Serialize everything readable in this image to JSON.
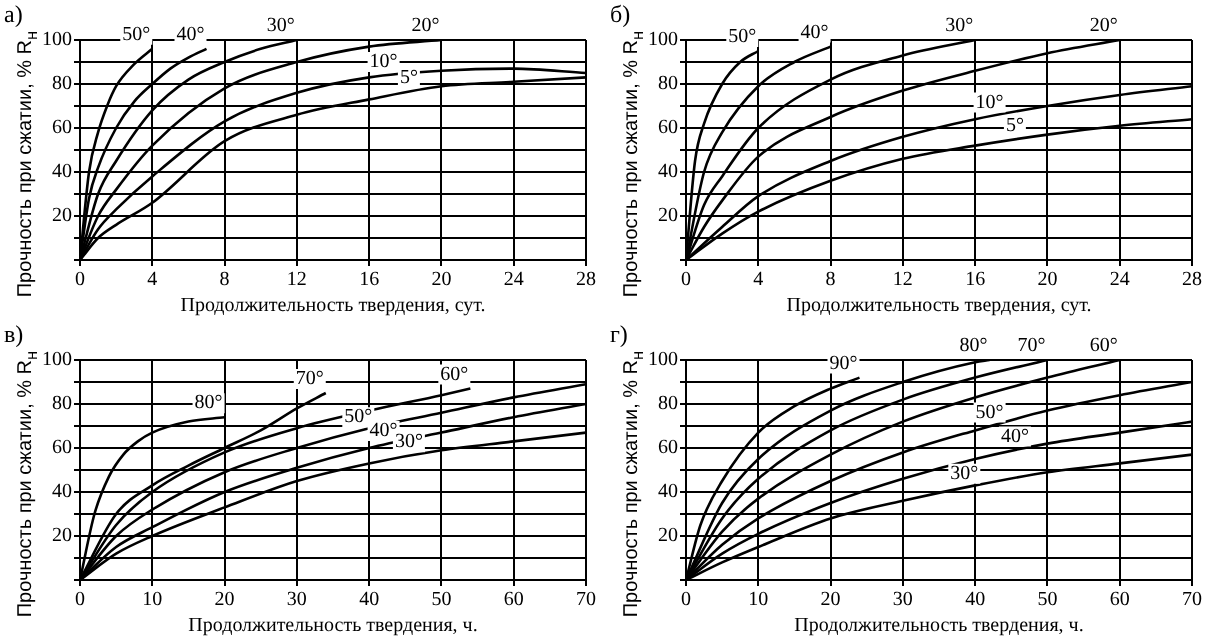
{
  "chart_data": [
    {
      "type": "line",
      "title": "а)",
      "xlabel": "Продолжительность твердения, сут.",
      "ylabel": "Прочность при сжатии, % R$_{н}$",
      "xlim": [
        0,
        28
      ],
      "ylim": [
        0,
        100
      ],
      "xticks": [
        0,
        4,
        8,
        12,
        16,
        20,
        24,
        28
      ],
      "yticks": [
        {
          "value": 0,
          "label": null
        },
        {
          "value": 10,
          "label": null
        },
        20,
        {
          "value": 30,
          "label": null
        },
        40,
        {
          "value": 50,
          "label": null
        },
        60,
        {
          "value": 70,
          "label": null
        },
        80,
        {
          "value": 90,
          "label": null
        },
        100
      ],
      "grid": true,
      "marker": "none",
      "line_style": "solid",
      "series": [
        {
          "name": "50°",
          "color": "#000000",
          "x": [
            0,
            0.5,
            1,
            1.5,
            2,
            3,
            4
          ],
          "values": [
            0,
            40,
            58,
            70,
            79,
            89,
            96
          ]
        },
        {
          "name": "40°",
          "color": "#000000",
          "x": [
            0,
            0.5,
            1,
            2,
            3,
            4,
            5,
            6,
            7
          ],
          "values": [
            0,
            28,
            42,
            60,
            72,
            80,
            87,
            92,
            96
          ]
        },
        {
          "name": "30°",
          "color": "#000000",
          "x": [
            0,
            1,
            2,
            4,
            6,
            8,
            10,
            12
          ],
          "values": [
            0,
            30,
            45,
            68,
            82,
            90,
            96,
            100
          ]
        },
        {
          "name": "20°",
          "color": "#000000",
          "x": [
            0,
            1,
            2,
            4,
            8,
            12,
            16,
            20
          ],
          "values": [
            0,
            20,
            32,
            52,
            78,
            90,
            97,
            100
          ]
        },
        {
          "name": "10°",
          "color": "#000000",
          "x": [
            0,
            1,
            2,
            4,
            8,
            12,
            16,
            20,
            24,
            28
          ],
          "values": [
            0,
            14,
            23,
            38,
            63,
            76,
            83,
            86,
            87,
            85
          ]
        },
        {
          "name": "5°",
          "color": "#000000",
          "x": [
            0,
            1,
            2,
            4,
            8,
            12,
            16,
            20,
            24,
            28
          ],
          "values": [
            0,
            10,
            16,
            26,
            54,
            66,
            73,
            79,
            81,
            83
          ]
        }
      ]
    },
    {
      "type": "line",
      "title": "б)",
      "xlabel": "Продолжительность твердения, сут.",
      "ylabel": "Прочность при сжатии, % R$_{н}$",
      "xlim": [
        0,
        28
      ],
      "ylim": [
        0,
        100
      ],
      "xticks": [
        0,
        4,
        8,
        12,
        16,
        20,
        24,
        28
      ],
      "yticks": [
        {
          "value": 0,
          "label": null
        },
        {
          "value": 10,
          "label": null
        },
        20,
        {
          "value": 30,
          "label": null
        },
        40,
        {
          "value": 50,
          "label": null
        },
        60,
        {
          "value": 70,
          "label": null
        },
        80,
        {
          "value": 90,
          "label": null
        },
        100
      ],
      "grid": true,
      "marker": "none",
      "line_style": "solid",
      "series": [
        {
          "name": "50°",
          "color": "#000000",
          "x": [
            0,
            0.5,
            1,
            2,
            3,
            4
          ],
          "values": [
            0,
            45,
            62,
            80,
            90,
            95
          ]
        },
        {
          "name": "40°",
          "color": "#000000",
          "x": [
            0,
            1,
            2,
            4,
            6,
            8
          ],
          "values": [
            0,
            40,
            58,
            79,
            90,
            97
          ]
        },
        {
          "name": "30°",
          "color": "#000000",
          "x": [
            0,
            1,
            2,
            4,
            8,
            12,
            16
          ],
          "values": [
            0,
            25,
            38,
            60,
            82,
            93,
            100
          ]
        },
        {
          "name": "20°",
          "color": "#000000",
          "x": [
            0,
            1,
            2,
            4,
            8,
            12,
            16,
            20,
            24
          ],
          "values": [
            0,
            15,
            27,
            47,
            65,
            77,
            86,
            94,
            100
          ]
        },
        {
          "name": "10°",
          "color": "#000000",
          "x": [
            0,
            2,
            4,
            8,
            12,
            16,
            20,
            24,
            28
          ],
          "values": [
            0,
            15,
            29,
            45,
            56,
            64,
            70,
            75,
            79
          ]
        },
        {
          "name": "5°",
          "color": "#000000",
          "x": [
            0,
            2,
            4,
            8,
            12,
            16,
            20,
            24,
            28
          ],
          "values": [
            0,
            12,
            22,
            36,
            46,
            52,
            57,
            61,
            64
          ]
        }
      ]
    },
    {
      "type": "line",
      "title": "в)",
      "xlabel": "Продолжительность твердения, ч.",
      "ylabel": "Прочность при сжатии, % R$_{н}$",
      "xlim": [
        0,
        70
      ],
      "ylim": [
        0,
        100
      ],
      "xticks": [
        0,
        10,
        20,
        30,
        40,
        50,
        60,
        70
      ],
      "yticks": [
        {
          "value": 0,
          "label": null
        },
        {
          "value": 10,
          "label": null
        },
        20,
        {
          "value": 30,
          "label": null
        },
        40,
        {
          "value": 50,
          "label": null
        },
        60,
        {
          "value": 70,
          "label": null
        },
        80,
        {
          "value": 90,
          "label": null
        },
        100
      ],
      "grid": true,
      "marker": "none",
      "line_style": "solid",
      "series": [
        {
          "name": "80°",
          "color": "#000000",
          "x": [
            0,
            2,
            4,
            6,
            8,
            10,
            15,
            20
          ],
          "values": [
            0,
            30,
            47,
            57,
            63,
            67,
            72,
            74
          ]
        },
        {
          "name": "70°",
          "color": "#000000",
          "x": [
            0,
            5,
            10,
            15,
            20,
            25,
            30,
            34
          ],
          "values": [
            0,
            30,
            43,
            52,
            60,
            68,
            78,
            85
          ]
        },
        {
          "name": "60°",
          "color": "#000000",
          "x": [
            0,
            5,
            10,
            20,
            30,
            40,
            50,
            54
          ],
          "values": [
            0,
            25,
            40,
            58,
            69,
            77,
            84,
            87
          ]
        },
        {
          "name": "50°",
          "color": "#000000",
          "x": [
            0,
            5,
            10,
            20,
            30,
            40,
            50,
            60,
            70
          ],
          "values": [
            0,
            20,
            32,
            49,
            60,
            69,
            76,
            83,
            89
          ]
        },
        {
          "name": "40°",
          "color": "#000000",
          "x": [
            0,
            5,
            10,
            20,
            30,
            40,
            50,
            60,
            70
          ],
          "values": [
            0,
            15,
            24,
            40,
            51,
            60,
            67,
            74,
            80
          ]
        },
        {
          "name": "30°",
          "color": "#000000",
          "x": [
            0,
            5,
            10,
            20,
            30,
            40,
            50,
            60,
            70
          ],
          "values": [
            0,
            12,
            20,
            33,
            45,
            53,
            59,
            63,
            67
          ]
        }
      ]
    },
    {
      "type": "line",
      "title": "г)",
      "xlabel": "Продолжительность твердения, ч.",
      "ylabel": "Прочность при сжатии, % R$_{н}$",
      "xlim": [
        0,
        70
      ],
      "ylim": [
        0,
        100
      ],
      "xticks": [
        0,
        10,
        20,
        30,
        40,
        50,
        60,
        70
      ],
      "yticks": [
        {
          "value": 0,
          "label": null
        },
        {
          "value": 10,
          "label": null
        },
        20,
        {
          "value": 30,
          "label": null
        },
        40,
        {
          "value": 50,
          "label": null
        },
        60,
        {
          "value": 70,
          "label": null
        },
        80,
        {
          "value": 90,
          "label": null
        },
        100
      ],
      "grid": true,
      "marker": "none",
      "line_style": "solid",
      "series": [
        {
          "name": "90°",
          "color": "#000000",
          "x": [
            0,
            2,
            5,
            10,
            15,
            20,
            24
          ],
          "values": [
            0,
            25,
            45,
            67,
            79,
            87,
            92
          ]
        },
        {
          "name": "80°",
          "color": "#000000",
          "x": [
            0,
            5,
            10,
            20,
            30,
            40,
            42
          ],
          "values": [
            0,
            35,
            55,
            77,
            90,
            99,
            100
          ]
        },
        {
          "name": "70°",
          "color": "#000000",
          "x": [
            0,
            5,
            10,
            20,
            30,
            40,
            50
          ],
          "values": [
            0,
            28,
            46,
            68,
            82,
            92,
            100
          ]
        },
        {
          "name": "60°",
          "color": "#000000",
          "x": [
            0,
            5,
            10,
            20,
            30,
            40,
            50,
            60
          ],
          "values": [
            0,
            22,
            37,
            57,
            72,
            83,
            92,
            100
          ]
        },
        {
          "name": "50°",
          "color": "#000000",
          "x": [
            0,
            5,
            10,
            20,
            30,
            40,
            50,
            60,
            70
          ],
          "values": [
            0,
            16,
            28,
            45,
            58,
            68,
            77,
            84,
            90
          ]
        },
        {
          "name": "40°",
          "color": "#000000",
          "x": [
            0,
            5,
            10,
            20,
            30,
            40,
            50,
            60,
            70
          ],
          "values": [
            0,
            12,
            21,
            35,
            46,
            55,
            62,
            67,
            72
          ]
        },
        {
          "name": "30°",
          "color": "#000000",
          "x": [
            0,
            5,
            10,
            20,
            30,
            40,
            50,
            60,
            70
          ],
          "values": [
            0,
            8,
            15,
            28,
            36,
            43,
            49,
            53,
            57
          ]
        }
      ]
    }
  ]
}
